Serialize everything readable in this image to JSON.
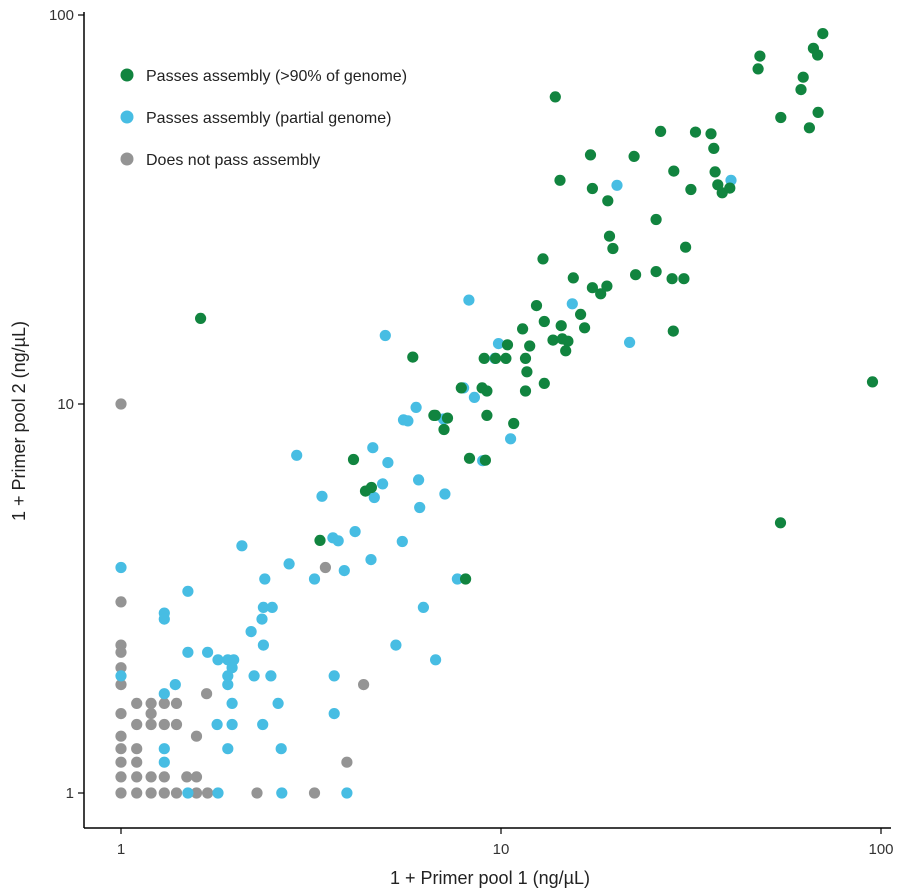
{
  "chart_data": {
    "type": "scatter",
    "title": "",
    "xlabel": "1 + Primer pool 1 (ng/µL)",
    "ylabel": "1 + Primer pool 2 (ng/µL)",
    "xscale": "log",
    "yscale": "log",
    "xlim": [
      0.9,
      108
    ],
    "ylim": [
      0.9,
      102
    ],
    "xticks": [
      1,
      10,
      100
    ],
    "yticks": [
      1,
      10,
      100
    ],
    "xtick_labels": [
      "1",
      "10",
      "100"
    ],
    "ytick_labels": [
      "1",
      "10",
      "100"
    ],
    "grid": false,
    "legend_position": "top-left",
    "series": [
      {
        "name": "Passes assembly (>90% of genome)",
        "color": "#11843f",
        "points": [
          [
            70.3,
            89.6
          ],
          [
            66.4,
            82.1
          ],
          [
            68.1,
            78.9
          ],
          [
            48.0,
            78.4
          ],
          [
            47.5,
            72.7
          ],
          [
            62.4,
            69.2
          ],
          [
            61.6,
            64.3
          ],
          [
            13.9,
            61.6
          ],
          [
            68.3,
            56.2
          ],
          [
            54.5,
            54.5
          ],
          [
            64.8,
            51.3
          ],
          [
            26.3,
            50.2
          ],
          [
            32.5,
            50.0
          ],
          [
            35.7,
            49.5
          ],
          [
            36.3,
            45.4
          ],
          [
            17.2,
            43.7
          ],
          [
            22.4,
            43.3
          ],
          [
            28.5,
            39.7
          ],
          [
            36.6,
            39.5
          ],
          [
            14.3,
            37.6
          ],
          [
            17.4,
            35.8
          ],
          [
            37.2,
            36.6
          ],
          [
            31.6,
            35.6
          ],
          [
            38.2,
            34.9
          ],
          [
            40.0,
            35.9
          ],
          [
            19.1,
            33.3
          ],
          [
            25.6,
            29.8
          ],
          [
            19.3,
            27.0
          ],
          [
            19.7,
            25.1
          ],
          [
            30.6,
            25.3
          ],
          [
            12.9,
            23.6
          ],
          [
            25.6,
            21.9
          ],
          [
            22.6,
            21.5
          ],
          [
            15.5,
            21.1
          ],
          [
            28.2,
            21.0
          ],
          [
            30.3,
            21.0
          ],
          [
            17.4,
            19.9
          ],
          [
            19.0,
            20.1
          ],
          [
            18.3,
            19.2
          ],
          [
            12.4,
            17.9
          ],
          [
            16.2,
            17.0
          ],
          [
            1.62,
            16.6
          ],
          [
            13.0,
            16.3
          ],
          [
            14.4,
            15.9
          ],
          [
            16.6,
            15.7
          ],
          [
            11.4,
            15.6
          ],
          [
            28.4,
            15.4
          ],
          [
            13.7,
            14.6
          ],
          [
            14.5,
            14.7
          ],
          [
            15.0,
            14.5
          ],
          [
            11.9,
            14.1
          ],
          [
            10.4,
            14.2
          ],
          [
            14.8,
            13.7
          ],
          [
            5.86,
            13.2
          ],
          [
            9.03,
            13.1
          ],
          [
            9.68,
            13.1
          ],
          [
            10.3,
            13.1
          ],
          [
            11.6,
            13.1
          ],
          [
            11.7,
            12.1
          ],
          [
            13.0,
            11.3
          ],
          [
            95.0,
            11.4
          ],
          [
            7.86,
            11.0
          ],
          [
            8.92,
            11.0
          ],
          [
            9.18,
            10.8
          ],
          [
            11.6,
            10.8
          ],
          [
            6.66,
            9.35
          ],
          [
            6.72,
            9.35
          ],
          [
            7.23,
            9.2
          ],
          [
            9.18,
            9.35
          ],
          [
            10.8,
            8.91
          ],
          [
            7.08,
            8.6
          ],
          [
            4.09,
            7.2
          ],
          [
            8.26,
            7.25
          ],
          [
            9.1,
            7.17
          ],
          [
            4.4,
            5.97
          ],
          [
            4.56,
            6.1
          ],
          [
            54.4,
            4.95
          ],
          [
            3.34,
            4.46
          ],
          [
            8.07,
            3.55
          ]
        ]
      },
      {
        "name": "Passes assembly (partial genome)",
        "color": "#47bde3",
        "points": [
          [
            20.2,
            36.5
          ],
          [
            40.3,
            37.6
          ],
          [
            8.23,
            18.5
          ],
          [
            15.4,
            18.1
          ],
          [
            4.96,
            15.0
          ],
          [
            21.8,
            14.4
          ],
          [
            9.85,
            14.3
          ],
          [
            9.64,
            13.1
          ],
          [
            7.97,
            11.0
          ],
          [
            8.51,
            10.4
          ],
          [
            5.98,
            9.8
          ],
          [
            5.54,
            9.1
          ],
          [
            5.69,
            9.05
          ],
          [
            7.06,
            9.15
          ],
          [
            10.6,
            8.14
          ],
          [
            4.6,
            7.72
          ],
          [
            2.9,
            7.38
          ],
          [
            5.04,
            7.07
          ],
          [
            8.95,
            7.15
          ],
          [
            6.07,
            6.38
          ],
          [
            4.88,
            6.23
          ],
          [
            4.64,
            5.75
          ],
          [
            3.38,
            5.79
          ],
          [
            7.12,
            5.87
          ],
          [
            6.11,
            5.42
          ],
          [
            4.13,
            4.7
          ],
          [
            2.08,
            4.32
          ],
          [
            3.61,
            4.53
          ],
          [
            3.73,
            4.45
          ],
          [
            5.5,
            4.43
          ],
          [
            4.55,
            3.98
          ],
          [
            2.77,
            3.88
          ],
          [
            3.87,
            3.73
          ],
          [
            1.0,
            3.8
          ],
          [
            2.39,
            3.55
          ],
          [
            3.23,
            3.55
          ],
          [
            7.68,
            3.55
          ],
          [
            1.5,
            3.3
          ],
          [
            2.37,
            3.0
          ],
          [
            2.5,
            3.0
          ],
          [
            6.25,
            3.0
          ],
          [
            1.3,
            2.9
          ],
          [
            1.3,
            2.8
          ],
          [
            2.35,
            2.8
          ],
          [
            2.2,
            2.6
          ],
          [
            2.37,
            2.4
          ],
          [
            5.29,
            2.4
          ],
          [
            1.5,
            2.3
          ],
          [
            1.69,
            2.3
          ],
          [
            1.8,
            2.2
          ],
          [
            1.91,
            2.2
          ],
          [
            1.98,
            2.2
          ],
          [
            1.96,
            2.1
          ],
          [
            6.73,
            2.2
          ],
          [
            1.91,
            2.0
          ],
          [
            2.24,
            2.0
          ],
          [
            2.48,
            2.0
          ],
          [
            3.64,
            2.0
          ],
          [
            1.0,
            2.0
          ],
          [
            1.91,
            1.9
          ],
          [
            1.39,
            1.9
          ],
          [
            1.3,
            1.8
          ],
          [
            1.96,
            1.7
          ],
          [
            2.59,
            1.7
          ],
          [
            3.64,
            1.6
          ],
          [
            1.79,
            1.5
          ],
          [
            1.96,
            1.5
          ],
          [
            2.36,
            1.5
          ],
          [
            1.3,
            1.3
          ],
          [
            1.91,
            1.3
          ],
          [
            2.64,
            1.3
          ],
          [
            1.3,
            1.2
          ],
          [
            1.5,
            1.0
          ],
          [
            1.8,
            1.0
          ],
          [
            2.65,
            1.0
          ],
          [
            3.93,
            1.0
          ]
        ]
      },
      {
        "name": "Does not pass assembly",
        "color": "#949494",
        "points": [
          [
            1.0,
            10.0
          ],
          [
            3.45,
            3.8
          ],
          [
            1.0,
            3.1
          ],
          [
            1.0,
            2.4
          ],
          [
            1.0,
            2.3
          ],
          [
            1.0,
            2.1
          ],
          [
            1.0,
            1.9
          ],
          [
            4.35,
            1.9
          ],
          [
            1.68,
            1.8
          ],
          [
            1.1,
            1.7
          ],
          [
            1.2,
            1.7
          ],
          [
            1.3,
            1.7
          ],
          [
            1.4,
            1.7
          ],
          [
            1.0,
            1.6
          ],
          [
            1.2,
            1.6
          ],
          [
            1.1,
            1.5
          ],
          [
            1.2,
            1.5
          ],
          [
            1.3,
            1.5
          ],
          [
            1.4,
            1.5
          ],
          [
            1.0,
            1.4
          ],
          [
            1.58,
            1.4
          ],
          [
            1.0,
            1.3
          ],
          [
            1.1,
            1.3
          ],
          [
            1.0,
            1.2
          ],
          [
            1.1,
            1.2
          ],
          [
            3.93,
            1.2
          ],
          [
            1.0,
            1.1
          ],
          [
            1.1,
            1.1
          ],
          [
            1.2,
            1.1
          ],
          [
            1.3,
            1.1
          ],
          [
            1.49,
            1.1
          ],
          [
            1.58,
            1.1
          ],
          [
            1.0,
            1.0
          ],
          [
            1.1,
            1.0
          ],
          [
            1.2,
            1.0
          ],
          [
            1.3,
            1.0
          ],
          [
            1.4,
            1.0
          ],
          [
            1.58,
            1.0
          ],
          [
            1.69,
            1.0
          ],
          [
            2.28,
            1.0
          ],
          [
            3.23,
            1.0
          ]
        ]
      }
    ]
  }
}
